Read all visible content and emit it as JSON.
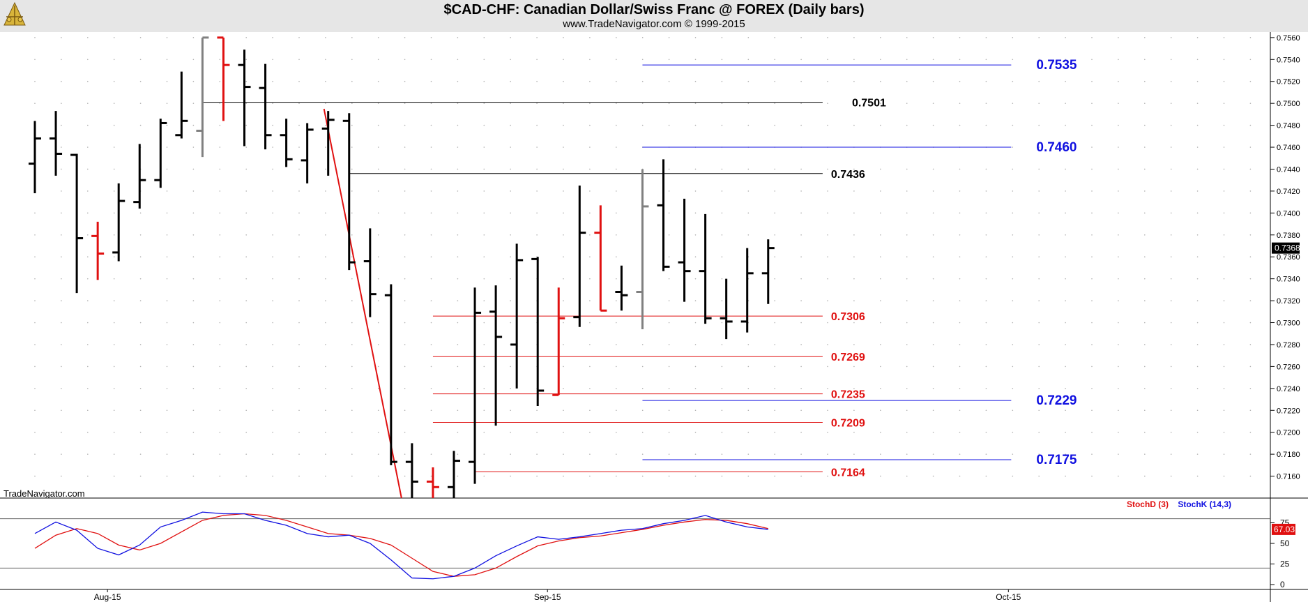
{
  "header": {
    "title": "$CAD-CHF:  Canadian Dollar/Swiss Franc @ FOREX  (Daily bars)",
    "subtitle": "www.TradeNavigator.com © 1999-2015"
  },
  "watermark": "TradeNavigator.com",
  "colors": {
    "up": "#000000",
    "down_red": "#e01010",
    "gray": "#808080",
    "support_red": "#e01010",
    "target_blue": "#1010e0",
    "level_black": "#000000",
    "stoch_d": "#e01010",
    "stoch_k": "#1010e0"
  },
  "chart_data": [
    {
      "type": "ohlc",
      "title": "$CAD-CHF:  Canadian Dollar/Swiss Franc @ FOREX  (Daily bars)",
      "y_ticks": [
        "0.7560",
        "0.7540",
        "0.7520",
        "0.7500",
        "0.7480",
        "0.7460",
        "0.7440",
        "0.7420",
        "0.7400",
        "0.7380",
        "0.7360",
        "0.7340",
        "0.7320",
        "0.7300",
        "0.7280",
        "0.7260",
        "0.7240",
        "0.7220",
        "0.7200",
        "0.7180",
        "0.7160"
      ],
      "ylim": [
        0.714,
        0.7565
      ],
      "x_labels": [
        {
          "label": "Aug-15",
          "bar": 3
        },
        {
          "label": "Sep-15",
          "bar": 24
        },
        {
          "label": "Oct-15",
          "bar": 46
        }
      ],
      "last_price": "0.7368",
      "bars": [
        {
          "i": 0,
          "o": 0.7445,
          "h": 0.7484,
          "l": 0.7418,
          "c": 0.7468,
          "color": "up"
        },
        {
          "i": 1,
          "o": 0.7468,
          "h": 0.7493,
          "l": 0.7434,
          "c": 0.7454,
          "color": "up"
        },
        {
          "i": 2,
          "o": 0.7453,
          "h": 0.7454,
          "l": 0.7327,
          "c": 0.7377,
          "color": "up"
        },
        {
          "i": 3,
          "o": 0.7379,
          "h": 0.7392,
          "l": 0.7339,
          "c": 0.7363,
          "color": "down_red"
        },
        {
          "i": 4,
          "o": 0.7364,
          "h": 0.7427,
          "l": 0.7356,
          "c": 0.7411,
          "color": "up"
        },
        {
          "i": 5,
          "o": 0.741,
          "h": 0.7463,
          "l": 0.7404,
          "c": 0.743,
          "color": "up"
        },
        {
          "i": 6,
          "o": 0.743,
          "h": 0.7486,
          "l": 0.7423,
          "c": 0.7482,
          "color": "up"
        },
        {
          "i": 7,
          "o": 0.7471,
          "h": 0.7529,
          "l": 0.7468,
          "c": 0.7484,
          "color": "up"
        },
        {
          "i": 8,
          "o": 0.7475,
          "h": 0.756,
          "l": 0.7451,
          "c": 0.756,
          "color": "gray"
        },
        {
          "i": 9,
          "o": 0.756,
          "h": 0.756,
          "l": 0.7484,
          "c": 0.7535,
          "color": "down_red"
        },
        {
          "i": 10,
          "o": 0.7535,
          "h": 0.7549,
          "l": 0.7461,
          "c": 0.7515,
          "color": "up"
        },
        {
          "i": 11,
          "o": 0.7514,
          "h": 0.7536,
          "l": 0.7458,
          "c": 0.7471,
          "color": "up"
        },
        {
          "i": 12,
          "o": 0.7471,
          "h": 0.7486,
          "l": 0.7442,
          "c": 0.7449,
          "color": "up"
        },
        {
          "i": 13,
          "o": 0.7448,
          "h": 0.7482,
          "l": 0.7427,
          "c": 0.7476,
          "color": "up"
        },
        {
          "i": 14,
          "o": 0.7477,
          "h": 0.7493,
          "l": 0.7434,
          "c": 0.7485,
          "color": "up"
        },
        {
          "i": 15,
          "o": 0.7484,
          "h": 0.7491,
          "l": 0.7348,
          "c": 0.7355,
          "color": "up"
        },
        {
          "i": 16,
          "o": 0.7356,
          "h": 0.7386,
          "l": 0.7305,
          "c": 0.7326,
          "color": "up"
        },
        {
          "i": 17,
          "o": 0.7325,
          "h": 0.7335,
          "l": 0.717,
          "c": 0.7173,
          "color": "up"
        },
        {
          "i": 18,
          "o": 0.7173,
          "h": 0.719,
          "l": 0.714,
          "c": 0.7155,
          "color": "up"
        },
        {
          "i": 19,
          "o": 0.7155,
          "h": 0.7168,
          "l": 0.714,
          "c": 0.715,
          "color": "down_red"
        },
        {
          "i": 20,
          "o": 0.715,
          "h": 0.7183,
          "l": 0.714,
          "c": 0.7174,
          "color": "up"
        },
        {
          "i": 21,
          "o": 0.7173,
          "h": 0.7332,
          "l": 0.7153,
          "c": 0.7309,
          "color": "up"
        },
        {
          "i": 22,
          "o": 0.731,
          "h": 0.7334,
          "l": 0.7206,
          "c": 0.7287,
          "color": "up"
        },
        {
          "i": 23,
          "o": 0.728,
          "h": 0.7372,
          "l": 0.724,
          "c": 0.7357,
          "color": "up"
        },
        {
          "i": 24,
          "o": 0.7358,
          "h": 0.736,
          "l": 0.7224,
          "c": 0.7238,
          "color": "up"
        },
        {
          "i": 25,
          "o": 0.7234,
          "h": 0.7332,
          "l": 0.7234,
          "c": 0.7304,
          "color": "down_red"
        },
        {
          "i": 26,
          "o": 0.7305,
          "h": 0.7425,
          "l": 0.7296,
          "c": 0.7382,
          "color": "up"
        },
        {
          "i": 27,
          "o": 0.7382,
          "h": 0.7407,
          "l": 0.7311,
          "c": 0.7311,
          "color": "down_red"
        },
        {
          "i": 28,
          "o": 0.7328,
          "h": 0.7352,
          "l": 0.7311,
          "c": 0.7325,
          "color": "up"
        },
        {
          "i": 29,
          "o": 0.7328,
          "h": 0.744,
          "l": 0.7294,
          "c": 0.7406,
          "color": "gray"
        },
        {
          "i": 30,
          "o": 0.7407,
          "h": 0.7449,
          "l": 0.7347,
          "c": 0.7351,
          "color": "up"
        },
        {
          "i": 31,
          "o": 0.7355,
          "h": 0.7413,
          "l": 0.7319,
          "c": 0.7347,
          "color": "up"
        },
        {
          "i": 32,
          "o": 0.7347,
          "h": 0.7399,
          "l": 0.7299,
          "c": 0.7304,
          "color": "up"
        },
        {
          "i": 33,
          "o": 0.7304,
          "h": 0.734,
          "l": 0.7285,
          "c": 0.7301,
          "color": "up"
        },
        {
          "i": 34,
          "o": 0.7301,
          "h": 0.7368,
          "l": 0.7291,
          "c": 0.7345,
          "color": "up"
        },
        {
          "i": 35,
          "o": 0.7345,
          "h": 0.7376,
          "l": 0.7317,
          "c": 0.7368,
          "color": "up"
        }
      ],
      "trendline": {
        "from": {
          "bar": 14,
          "y": 0.7495
        },
        "to": {
          "bar": 17.5,
          "y": 0.714
        },
        "color": "down_red"
      },
      "levels": [
        {
          "value": "0.7535",
          "y": 0.7535,
          "color": "target_blue",
          "from_bar": 29,
          "to_bar": 46.6,
          "label_bar": 47.8,
          "size": 19
        },
        {
          "value": "0.7501",
          "y": 0.7501,
          "color": "level_black",
          "from_bar": 8,
          "to_bar": 37.6,
          "label_bar": 39.0,
          "size": 16
        },
        {
          "value": "0.7460",
          "y": 0.746,
          "color": "target_blue",
          "from_bar": 29,
          "to_bar": 46.6,
          "label_bar": 47.8,
          "size": 19
        },
        {
          "value": "0.7436",
          "y": 0.7436,
          "color": "level_black",
          "from_bar": 15,
          "to_bar": 37.6,
          "label_bar": 38.0,
          "size": 16
        },
        {
          "value": "0.7306",
          "y": 0.7306,
          "color": "support_red",
          "from_bar": 19,
          "to_bar": 37.6,
          "label_bar": 38.0,
          "size": 16
        },
        {
          "value": "0.7269",
          "y": 0.7269,
          "color": "support_red",
          "from_bar": 19,
          "to_bar": 37.6,
          "label_bar": 38.0,
          "size": 16
        },
        {
          "value": "0.7235",
          "y": 0.7235,
          "color": "support_red",
          "from_bar": 19,
          "to_bar": 37.6,
          "label_bar": 38.0,
          "size": 16
        },
        {
          "value": "0.7229",
          "y": 0.7229,
          "color": "target_blue",
          "from_bar": 29,
          "to_bar": 46.6,
          "label_bar": 47.8,
          "size": 19
        },
        {
          "value": "0.7209",
          "y": 0.7209,
          "color": "support_red",
          "from_bar": 19,
          "to_bar": 37.6,
          "label_bar": 38.0,
          "size": 16
        },
        {
          "value": "0.7175",
          "y": 0.7175,
          "color": "target_blue",
          "from_bar": 29,
          "to_bar": 46.6,
          "label_bar": 47.8,
          "size": 19
        },
        {
          "value": "0.7164",
          "y": 0.7164,
          "color": "support_red",
          "from_bar": 21,
          "to_bar": 37.6,
          "label_bar": 38.0,
          "size": 16
        }
      ]
    },
    {
      "type": "line",
      "legend": {
        "d": "StochD (3)",
        "k": "StochK (14,3)"
      },
      "y_ticks": [
        "75",
        "50",
        "25",
        "0"
      ],
      "ylim": [
        0,
        100
      ],
      "reference_lines": [
        80,
        20
      ],
      "last_value": "67.03",
      "series": [
        {
          "name": "StochD (3)",
          "color": "stoch_d",
          "x": [
            0,
            1,
            2,
            3,
            4,
            5,
            6,
            7,
            8,
            9,
            10,
            11,
            12,
            13,
            14,
            15,
            16,
            17,
            18,
            19,
            20,
            21,
            22,
            23,
            24,
            25,
            26,
            27,
            28,
            29,
            30,
            31,
            32,
            33,
            34,
            35
          ],
          "values": [
            44,
            60,
            68,
            62,
            48,
            42,
            50,
            64,
            78,
            84,
            86,
            84,
            78,
            70,
            62,
            60,
            56,
            48,
            32,
            16,
            10,
            12,
            20,
            34,
            47,
            53,
            57,
            59,
            63,
            67,
            72,
            76,
            79,
            78,
            74,
            68
          ]
        },
        {
          "name": "StochK (14,3)",
          "color": "stoch_k",
          "x": [
            0,
            1,
            2,
            3,
            4,
            5,
            6,
            7,
            8,
            9,
            10,
            11,
            12,
            13,
            14,
            15,
            16,
            17,
            18,
            19,
            20,
            21,
            22,
            23,
            24,
            25,
            26,
            27,
            28,
            29,
            30,
            31,
            32,
            33,
            34,
            35
          ],
          "values": [
            62,
            76,
            66,
            44,
            36,
            48,
            70,
            78,
            88,
            86,
            86,
            78,
            72,
            62,
            58,
            60,
            50,
            30,
            8,
            7,
            10,
            20,
            35,
            47,
            58,
            55,
            58,
            62,
            66,
            68,
            74,
            78,
            84,
            76,
            70,
            67
          ]
        }
      ]
    }
  ]
}
